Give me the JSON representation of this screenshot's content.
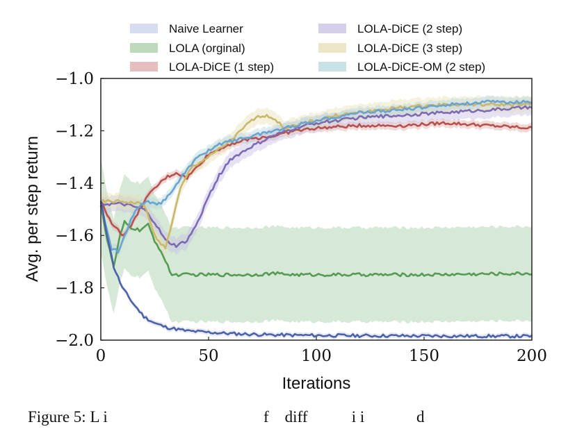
{
  "chart_data": {
    "type": "line",
    "xlabel": "Iterations",
    "ylabel": "Avg. per step return",
    "xlim": [
      0,
      200
    ],
    "ylim": [
      -2.0,
      -1.0
    ],
    "xticks": [
      0,
      50,
      100,
      150,
      200
    ],
    "xtick_labels": [
      "0",
      "50",
      "100",
      "150",
      "200"
    ],
    "yticks": [
      -1.0,
      -1.2,
      -1.4,
      -1.6,
      -1.8,
      -2.0
    ],
    "ytick_labels": [
      "−1.0",
      "−1.2",
      "−1.4",
      "−1.6",
      "−1.8",
      "−2.0"
    ],
    "grid": false,
    "legend_position": "top, two columns",
    "series": [
      {
        "name": "Naive Learner",
        "color": "#4c62a8",
        "band_color": "#c9d0ec",
        "band": 0.01,
        "points": [
          [
            0,
            -1.47
          ],
          [
            3,
            -1.6
          ],
          [
            6,
            -1.72
          ],
          [
            10,
            -1.8
          ],
          [
            15,
            -1.86
          ],
          [
            20,
            -1.91
          ],
          [
            25,
            -1.935
          ],
          [
            30,
            -1.95
          ],
          [
            40,
            -1.965
          ],
          [
            50,
            -1.97
          ],
          [
            60,
            -1.975
          ],
          [
            80,
            -1.98
          ],
          [
            100,
            -1.982
          ],
          [
            150,
            -1.984
          ],
          [
            200,
            -1.985
          ]
        ]
      },
      {
        "name": "LOLA (orginal)",
        "color": "#559a55",
        "band_color": "#a5cca5",
        "band": 0.18,
        "points": [
          [
            0,
            -1.48
          ],
          [
            3,
            -1.62
          ],
          [
            6,
            -1.72
          ],
          [
            9,
            -1.6
          ],
          [
            11,
            -1.55
          ],
          [
            14,
            -1.57
          ],
          [
            18,
            -1.58
          ],
          [
            22,
            -1.56
          ],
          [
            25,
            -1.62
          ],
          [
            28,
            -1.66
          ],
          [
            30,
            -1.7
          ],
          [
            33,
            -1.75
          ],
          [
            40,
            -1.75
          ],
          [
            50,
            -1.75
          ],
          [
            60,
            -1.75
          ],
          [
            70,
            -1.75
          ],
          [
            80,
            -1.745
          ],
          [
            90,
            -1.75
          ],
          [
            100,
            -1.75
          ],
          [
            150,
            -1.75
          ],
          [
            200,
            -1.745
          ]
        ]
      },
      {
        "name": "LOLA-DiCE (1 step)",
        "color": "#b5514f",
        "band_color": "#dfaaa9",
        "band": 0.015,
        "points": [
          [
            0,
            -1.47
          ],
          [
            5,
            -1.55
          ],
          [
            10,
            -1.6
          ],
          [
            15,
            -1.55
          ],
          [
            20,
            -1.47
          ],
          [
            25,
            -1.42
          ],
          [
            30,
            -1.38
          ],
          [
            35,
            -1.36
          ],
          [
            40,
            -1.38
          ],
          [
            50,
            -1.29
          ],
          [
            60,
            -1.25
          ],
          [
            70,
            -1.23
          ],
          [
            80,
            -1.22
          ],
          [
            90,
            -1.2
          ],
          [
            100,
            -1.19
          ],
          [
            120,
            -1.18
          ],
          [
            140,
            -1.18
          ],
          [
            160,
            -1.17
          ],
          [
            180,
            -1.18
          ],
          [
            200,
            -1.19
          ]
        ]
      },
      {
        "name": "LOLA-DiCE (2 step)",
        "color": "#7c6ab3",
        "band_color": "#c8bfe4",
        "band": 0.03,
        "points": [
          [
            0,
            -1.48
          ],
          [
            10,
            -1.48
          ],
          [
            20,
            -1.5
          ],
          [
            25,
            -1.55
          ],
          [
            30,
            -1.62
          ],
          [
            35,
            -1.64
          ],
          [
            40,
            -1.62
          ],
          [
            45,
            -1.55
          ],
          [
            50,
            -1.45
          ],
          [
            55,
            -1.37
          ],
          [
            60,
            -1.31
          ],
          [
            70,
            -1.26
          ],
          [
            80,
            -1.22
          ],
          [
            90,
            -1.19
          ],
          [
            100,
            -1.17
          ],
          [
            120,
            -1.15
          ],
          [
            140,
            -1.14
          ],
          [
            160,
            -1.13
          ],
          [
            180,
            -1.12
          ],
          [
            200,
            -1.11
          ]
        ]
      },
      {
        "name": "LOLA-DiCE (3 step)",
        "color": "#c7b86b",
        "band_color": "#e6dfb5",
        "band": 0.03,
        "points": [
          [
            0,
            -1.47
          ],
          [
            10,
            -1.47
          ],
          [
            20,
            -1.48
          ],
          [
            25,
            -1.6
          ],
          [
            30,
            -1.65
          ],
          [
            33,
            -1.55
          ],
          [
            37,
            -1.42
          ],
          [
            42,
            -1.34
          ],
          [
            50,
            -1.3
          ],
          [
            60,
            -1.24
          ],
          [
            70,
            -1.16
          ],
          [
            75,
            -1.14
          ],
          [
            80,
            -1.15
          ],
          [
            85,
            -1.19
          ],
          [
            90,
            -1.18
          ],
          [
            100,
            -1.16
          ],
          [
            110,
            -1.14
          ],
          [
            120,
            -1.13
          ],
          [
            140,
            -1.11
          ],
          [
            160,
            -1.1
          ],
          [
            180,
            -1.1
          ],
          [
            200,
            -1.1
          ]
        ]
      },
      {
        "name": "LOLA-DiCE-OM (2 step)",
        "color": "#6aa3cf",
        "band_color": "#b6d8e0",
        "band": 0.02,
        "points": [
          [
            0,
            -1.48
          ],
          [
            5,
            -1.65
          ],
          [
            8,
            -1.66
          ],
          [
            12,
            -1.58
          ],
          [
            16,
            -1.5
          ],
          [
            22,
            -1.47
          ],
          [
            28,
            -1.48
          ],
          [
            32,
            -1.44
          ],
          [
            37,
            -1.38
          ],
          [
            45,
            -1.3
          ],
          [
            55,
            -1.25
          ],
          [
            65,
            -1.23
          ],
          [
            75,
            -1.21
          ],
          [
            85,
            -1.19
          ],
          [
            100,
            -1.16
          ],
          [
            120,
            -1.13
          ],
          [
            140,
            -1.12
          ],
          [
            160,
            -1.1
          ],
          [
            180,
            -1.09
          ],
          [
            200,
            -1.09
          ]
        ]
      }
    ]
  },
  "caption_text": "Figure 5: L i                                       f    diff           i i             d"
}
